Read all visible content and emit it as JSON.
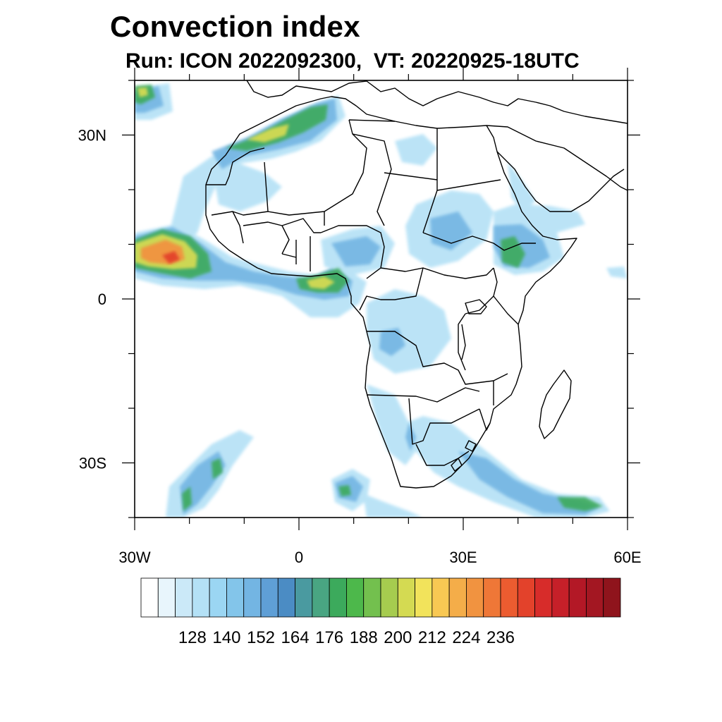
{
  "title": "Convection index",
  "subtitle": "Run: ICON 2022092300,  VT: 20220925-18UTC",
  "map": {
    "lon_range": [
      -30,
      60
    ],
    "lat_range": [
      -40,
      40
    ],
    "lat_ticks": [
      {
        "value": 30,
        "label": "30N"
      },
      {
        "value": 0,
        "label": "0"
      },
      {
        "value": -30,
        "label": "30S"
      }
    ],
    "lon_ticks": [
      {
        "value": -30,
        "label": "30W"
      },
      {
        "value": 0,
        "label": "0"
      },
      {
        "value": 30,
        "label": "30E"
      },
      {
        "value": 60,
        "label": "60E"
      }
    ],
    "border_color": "#000000",
    "background": "#ffffff"
  },
  "colorbar": {
    "labels": [
      "128",
      "140",
      "152",
      "164",
      "176",
      "188",
      "200",
      "212",
      "224",
      "236"
    ],
    "colors": [
      "#ffffff",
      "#e8f5fc",
      "#cbe9f8",
      "#b4e1f6",
      "#9bd6f3",
      "#83c5ea",
      "#73b5e3",
      "#5f9fd6",
      "#4b8cc4",
      "#4a9aa0",
      "#49a582",
      "#3caa5c",
      "#4db84b",
      "#73c04e",
      "#a6cc4f",
      "#d4da52",
      "#f2e35b",
      "#f8c853",
      "#f4ad49",
      "#f19340",
      "#ef7737",
      "#ec5c30",
      "#e3422b",
      "#d72c2a",
      "#c62029",
      "#b31826",
      "#a31722",
      "#8f141c"
    ]
  }
}
